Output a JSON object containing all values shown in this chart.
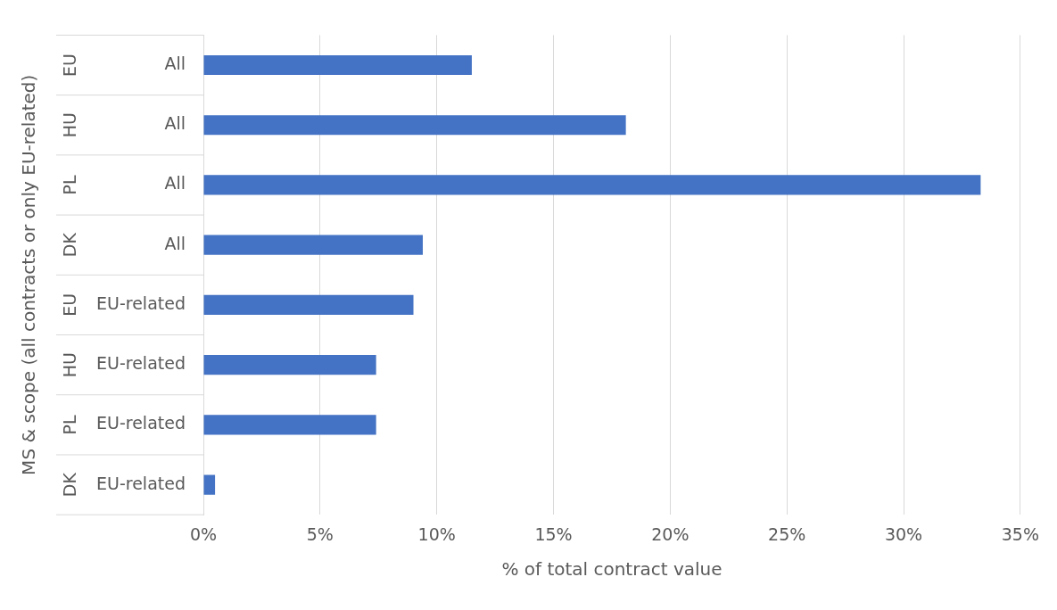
{
  "chart_data": {
    "type": "bar",
    "orientation": "horizontal",
    "xlabel": "% of total contract value",
    "ylabel": "MS & scope (all contracts or only EU-related)",
    "categories": [
      "All",
      "All",
      "All",
      "All",
      "EU-related",
      "EU-related",
      "EU-related",
      "EU-related"
    ],
    "annotations": [
      "EU",
      "HU",
      "PL",
      "DK",
      "EU",
      "HU",
      "PL",
      "DK"
    ],
    "values": [
      11.5,
      18.1,
      33.3,
      9.4,
      9.0,
      7.4,
      7.4,
      0.5
    ],
    "color": "#4472c4",
    "xlim": [
      0,
      35
    ],
    "xticks": [
      {
        "value": 0,
        "label": "0%"
      },
      {
        "value": 5,
        "label": "5%"
      },
      {
        "value": 10,
        "label": "10%"
      },
      {
        "value": 15,
        "label": "15%"
      },
      {
        "value": 20,
        "label": "20%"
      },
      {
        "value": 25,
        "label": "25%"
      },
      {
        "value": 30,
        "label": "30%"
      },
      {
        "value": 35,
        "label": "35%"
      }
    ],
    "grid": "x"
  }
}
